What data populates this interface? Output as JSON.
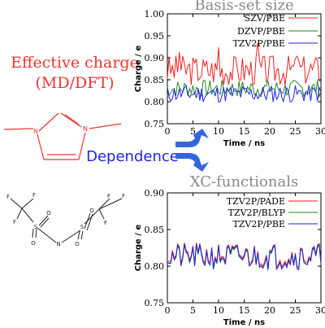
{
  "left": {
    "title_line1": "Effective charge",
    "title_line2": "(MD/DFT)",
    "title_color": "#ee3333",
    "dependence_label": "Dependence",
    "dependence_color": "#2222ee",
    "arrow_color": "#3366dd",
    "cation_atoms": [
      "N",
      "N"
    ],
    "anion_atoms": [
      "F",
      "F",
      "F",
      "O",
      "O",
      "N",
      "O",
      "O",
      "F",
      "F",
      "F",
      "S",
      "S"
    ],
    "cation_color": "#ee3333",
    "anion_color": "#222222"
  },
  "chart_data": [
    {
      "type": "line",
      "title": "Basis-set size",
      "xlabel": "Time / ns",
      "ylabel": "Charge / e",
      "xlim": [
        0,
        30
      ],
      "ylim": [
        0.75,
        1.0
      ],
      "xticks": [
        "0",
        "5",
        "10",
        "15",
        "20",
        "25",
        "30"
      ],
      "yticks": [
        "0.75",
        "0.80",
        "0.85",
        "0.90",
        "0.95",
        "1.00"
      ],
      "legend_position": "top-right",
      "series": [
        {
          "name": "SZV/PBE",
          "color": "#ee2222",
          "base": 0.872,
          "amp": 0.035,
          "seed": 3
        },
        {
          "name": "DZVP/PBE",
          "color": "#228822",
          "base": 0.83,
          "amp": 0.02,
          "seed": 7
        },
        {
          "name": "TZV2P/PBE",
          "color": "#2222dd",
          "base": 0.818,
          "amp": 0.02,
          "seed": 11
        }
      ]
    },
    {
      "type": "line",
      "title": "XC-functionals",
      "xlabel": "Time / ns",
      "ylabel": "Charge / e",
      "xlim": [
        0,
        30
      ],
      "ylim": [
        0.75,
        0.9
      ],
      "xticks": [
        "0",
        "5",
        "10",
        "15",
        "20",
        "25",
        "30"
      ],
      "yticks": [
        "0.75",
        "0.80",
        "0.85",
        "0.90"
      ],
      "legend_position": "top-right",
      "series": [
        {
          "name": "TZV2P/PADE",
          "color": "#ee2222",
          "base": 0.815,
          "amp": 0.017,
          "seed": 21
        },
        {
          "name": "TZV2P/BLYP",
          "color": "#228822",
          "base": 0.812,
          "amp": 0.017,
          "seed": 21
        },
        {
          "name": "TZV2P/PBE",
          "color": "#2222dd",
          "base": 0.813,
          "amp": 0.018,
          "seed": 21
        }
      ]
    }
  ]
}
